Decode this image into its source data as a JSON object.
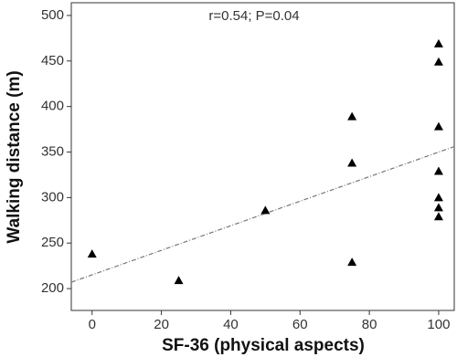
{
  "chart_data": {
    "type": "scatter",
    "annotation": "r=0.54; P=0.04",
    "x_label": "SF-36 (physical aspects)",
    "y_label": "Walking distance (m)",
    "x": [
      0,
      25,
      50,
      75,
      75,
      75,
      100,
      100,
      100,
      100,
      100,
      100,
      100
    ],
    "values": [
      238,
      209,
      286,
      389,
      338,
      229,
      469,
      449,
      378,
      329,
      300,
      289,
      279
    ],
    "color": "#000000",
    "trendline": {
      "x": [
        -6,
        104.5
      ],
      "y": [
        207,
        356
      ],
      "color": "#777777"
    },
    "xlim": [
      -6,
      104.5
    ],
    "xticks": [
      0,
      20,
      40,
      60,
      80,
      100
    ],
    "ylim": [
      176,
      514
    ],
    "yticks": [
      200,
      250,
      300,
      350,
      400,
      450,
      500
    ]
  }
}
